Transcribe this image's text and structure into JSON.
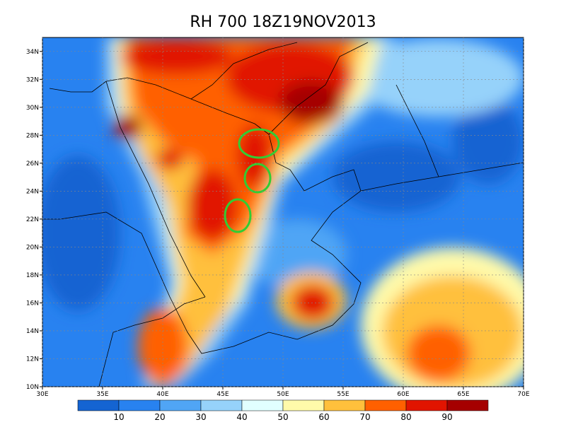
{
  "map": {
    "title": "RH 700 18Z19NOV2013",
    "xlim": [
      30,
      70
    ],
    "ylim": [
      10,
      35
    ],
    "xticks": [
      {
        "value": 30,
        "label": "30E"
      },
      {
        "value": 35,
        "label": "35E"
      },
      {
        "value": 40,
        "label": "40E"
      },
      {
        "value": 45,
        "label": "45E"
      },
      {
        "value": 50,
        "label": "50E"
      },
      {
        "value": 55,
        "label": "55E"
      },
      {
        "value": 60,
        "label": "60E"
      },
      {
        "value": 65,
        "label": "65E"
      },
      {
        "value": 70,
        "label": "70E"
      }
    ],
    "yticks": [
      {
        "value": 10,
        "label": "10N"
      },
      {
        "value": 12,
        "label": "12N"
      },
      {
        "value": 14,
        "label": "14N"
      },
      {
        "value": 16,
        "label": "16N"
      },
      {
        "value": 18,
        "label": "18N"
      },
      {
        "value": 20,
        "label": "20N"
      },
      {
        "value": 22,
        "label": "22N"
      },
      {
        "value": 24,
        "label": "24N"
      },
      {
        "value": 26,
        "label": "26N"
      },
      {
        "value": 28,
        "label": "28N"
      },
      {
        "value": 30,
        "label": "30N"
      },
      {
        "value": 32,
        "label": "32N"
      },
      {
        "value": 34,
        "label": "34N"
      }
    ],
    "grid": true,
    "colorbar": {
      "levels": [
        10,
        20,
        30,
        40,
        50,
        60,
        70,
        80,
        90
      ],
      "colors": [
        "#1464d2",
        "#2882f0",
        "#50a5f5",
        "#96d2fa",
        "#e1ffff",
        "#fffaaa",
        "#ffc03c",
        "#ff6000",
        "#e11400",
        "#a50000"
      ]
    }
  }
}
